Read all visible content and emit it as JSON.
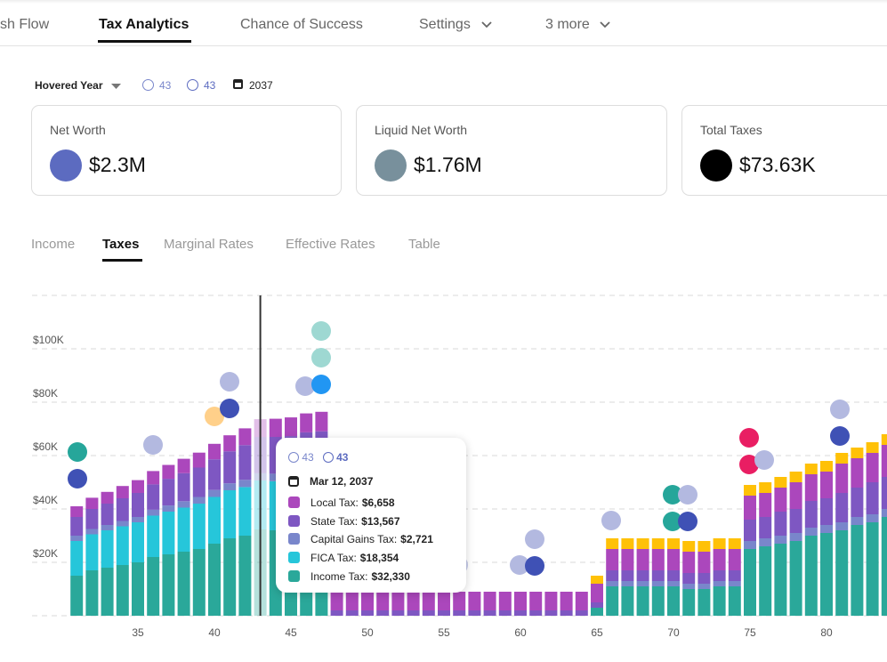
{
  "nav": {
    "tabs": [
      "sh Flow",
      "Tax Analytics",
      "Chance of Success",
      "Settings",
      "3 more"
    ]
  },
  "toolbar": {
    "selector": "Hovered Year",
    "age1": "43",
    "age2": "43",
    "year": "2037"
  },
  "cards": [
    {
      "label": "Net Worth",
      "value": "$2.3M",
      "color": "#5c6bc0"
    },
    {
      "label": "Liquid Net Worth",
      "value": "$1.76M",
      "color": "#78909c"
    },
    {
      "label": "Total Taxes",
      "value": "$73.63K",
      "color": "#000000"
    }
  ],
  "subtabs": [
    "Income",
    "Taxes",
    "Marginal Rates",
    "Effective Rates",
    "Table"
  ],
  "chart": {
    "type": "stacked-bar",
    "x": [
      31,
      32,
      33,
      34,
      35,
      36,
      37,
      38,
      39,
      40,
      41,
      42,
      43,
      44,
      45,
      46,
      47,
      48,
      49,
      50,
      51,
      52,
      53,
      54,
      55,
      56,
      57,
      58,
      59,
      60,
      61,
      62,
      63,
      64,
      65,
      66,
      67,
      68,
      69,
      70,
      71,
      72,
      73,
      74,
      75,
      76,
      77,
      78,
      79,
      80,
      81,
      82,
      83,
      84
    ],
    "xlim": [
      30,
      85
    ],
    "xticks": [
      35,
      40,
      45,
      50,
      55,
      60,
      65,
      70,
      75,
      80
    ],
    "ylim": [
      0,
      120000
    ],
    "yticks": [
      {
        "value": 20000,
        "label": "$20K"
      },
      {
        "value": 40000,
        "label": "$40K"
      },
      {
        "value": 60000,
        "label": "$60K"
      },
      {
        "value": 80000,
        "label": "$80K"
      },
      {
        "value": 100000,
        "label": "$100K"
      }
    ],
    "grid": true,
    "highlight": 43,
    "series": [
      {
        "color": "#2aa89a",
        "values": [
          15000,
          17000,
          18000,
          19000,
          20000,
          22000,
          23000,
          24000,
          25000,
          27000,
          29000,
          30000,
          32330,
          32000,
          32000,
          33000,
          33000,
          0,
          0,
          0,
          0,
          0,
          0,
          0,
          0,
          0,
          0,
          0,
          0,
          0,
          0,
          0,
          0,
          0,
          3000,
          11000,
          11000,
          11000,
          11000,
          11000,
          10000,
          10000,
          11000,
          11000,
          25000,
          26000,
          27000,
          28000,
          30000,
          31000,
          32000,
          34000,
          35000,
          37000
        ]
      },
      {
        "color": "#26c6da",
        "values": [
          13000,
          13500,
          14000,
          14500,
          15000,
          15500,
          16000,
          16500,
          17000,
          17500,
          18000,
          18200,
          18354,
          18400,
          18500,
          18600,
          18700,
          0,
          0,
          0,
          0,
          0,
          0,
          0,
          0,
          0,
          0,
          0,
          0,
          0,
          0,
          0,
          0,
          0,
          0,
          0,
          0,
          0,
          0,
          0,
          0,
          0,
          0,
          0,
          0,
          0,
          0,
          0,
          0,
          0,
          0,
          0,
          0,
          0
        ]
      },
      {
        "color": "#7986cb",
        "values": [
          2000,
          2000,
          2000,
          2000,
          2000,
          2200,
          2300,
          2400,
          2500,
          2600,
          2600,
          2700,
          2721,
          2800,
          2800,
          2900,
          2900,
          0,
          0,
          0,
          0,
          0,
          0,
          0,
          0,
          0,
          0,
          0,
          0,
          0,
          0,
          0,
          0,
          0,
          0,
          2000,
          2000,
          2000,
          2000,
          2000,
          2000,
          2000,
          2000,
          2000,
          3000,
          3000,
          3000,
          3000,
          3000,
          3000,
          3000,
          3000,
          3000,
          3000
        ]
      },
      {
        "color": "#7e57c2",
        "values": [
          7000,
          7500,
          8000,
          8500,
          9000,
          9500,
          10000,
          10500,
          11000,
          11500,
          12000,
          13000,
          13567,
          13800,
          14000,
          14200,
          14500,
          2000,
          2000,
          2000,
          2000,
          2000,
          2000,
          2000,
          2000,
          2000,
          2000,
          2000,
          2000,
          2000,
          2000,
          2000,
          2000,
          2000,
          2000,
          4000,
          4000,
          4000,
          4000,
          4000,
          4000,
          4000,
          4000,
          4000,
          8000,
          8000,
          9000,
          9000,
          10000,
          10000,
          11000,
          11000,
          12000,
          12000
        ]
      },
      {
        "color": "#ab47bc",
        "values": [
          4000,
          4200,
          4400,
          4600,
          4800,
          5000,
          5200,
          5400,
          5600,
          5800,
          6000,
          6300,
          6658,
          6800,
          7000,
          7100,
          7300,
          7000,
          7000,
          7000,
          7000,
          7000,
          7000,
          7000,
          7000,
          7000,
          7000,
          7000,
          7000,
          7000,
          7000,
          7000,
          7000,
          7000,
          7000,
          8000,
          8000,
          8000,
          8000,
          8000,
          8000,
          8000,
          8000,
          8000,
          9000,
          9000,
          9000,
          10000,
          10000,
          10000,
          11000,
          11000,
          11000,
          12000
        ]
      },
      {
        "color": "#ffc107",
        "values": [
          0,
          0,
          0,
          0,
          0,
          0,
          0,
          0,
          0,
          0,
          0,
          0,
          0,
          0,
          0,
          0,
          0,
          0,
          0,
          0,
          0,
          0,
          0,
          0,
          0,
          0,
          0,
          0,
          0,
          0,
          0,
          0,
          0,
          0,
          3000,
          4000,
          4000,
          4000,
          4000,
          4000,
          4000,
          4000,
          4000,
          4000,
          4000,
          4000,
          4000,
          4000,
          4000,
          4000,
          4000,
          4000,
          4000,
          4000
        ]
      }
    ]
  },
  "tooltip": {
    "age1": "43",
    "age2": "43",
    "date": "Mar 12, 2037",
    "items": [
      {
        "label": "Local Tax:",
        "value": "$6,658"
      },
      {
        "label": "State Tax:",
        "value": "$13,567"
      },
      {
        "label": "Capital Gains Tax:",
        "value": "$2,721"
      },
      {
        "label": "FICA Tax:",
        "value": "$18,354"
      },
      {
        "label": "Income Tax:",
        "value": "$32,330"
      }
    ]
  }
}
